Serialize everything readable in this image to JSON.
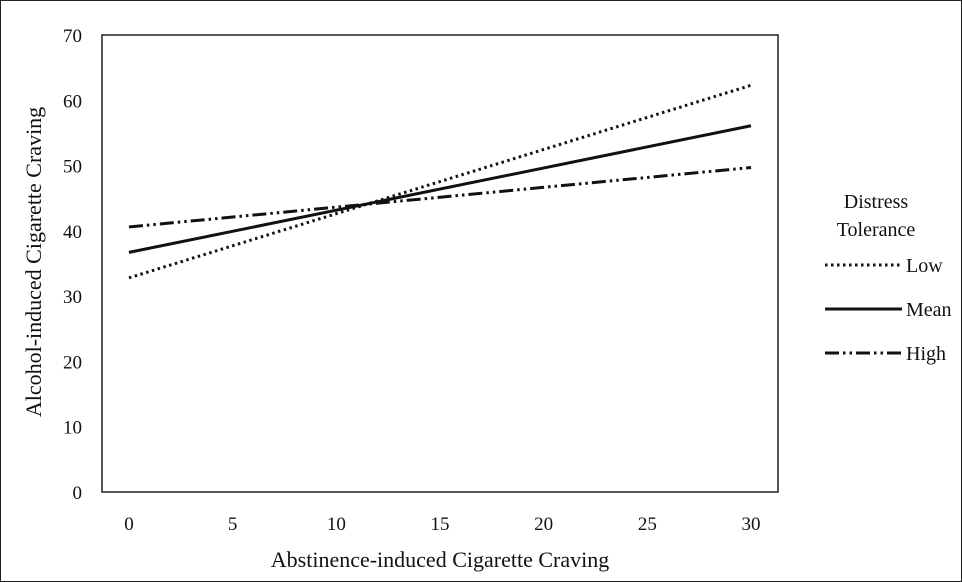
{
  "chart_data": {
    "type": "line",
    "xlabel": "Abstinence-induced Cigarette Craving",
    "ylabel": "Alcohol-induced Cigarette Craving",
    "x_ticks": [
      0,
      5,
      10,
      15,
      20,
      25,
      30
    ],
    "y_ticks": [
      0,
      10,
      20,
      30,
      40,
      50,
      60,
      70
    ],
    "xlim": [
      -1.3,
      31.3
    ],
    "ylim": [
      0,
      70
    ],
    "grid": false,
    "legend_title": "Distress Tolerance",
    "legend_position": "right",
    "series": [
      {
        "name": "Low",
        "style": "dotted",
        "x": [
          0,
          30
        ],
        "y": [
          32.8,
          62.3
        ]
      },
      {
        "name": "Mean",
        "style": "solid",
        "x": [
          0,
          30
        ],
        "y": [
          36.7,
          56.1
        ]
      },
      {
        "name": "High",
        "style": "dash-dot-dot",
        "x": [
          0,
          30
        ],
        "y": [
          40.6,
          49.7
        ]
      }
    ]
  }
}
